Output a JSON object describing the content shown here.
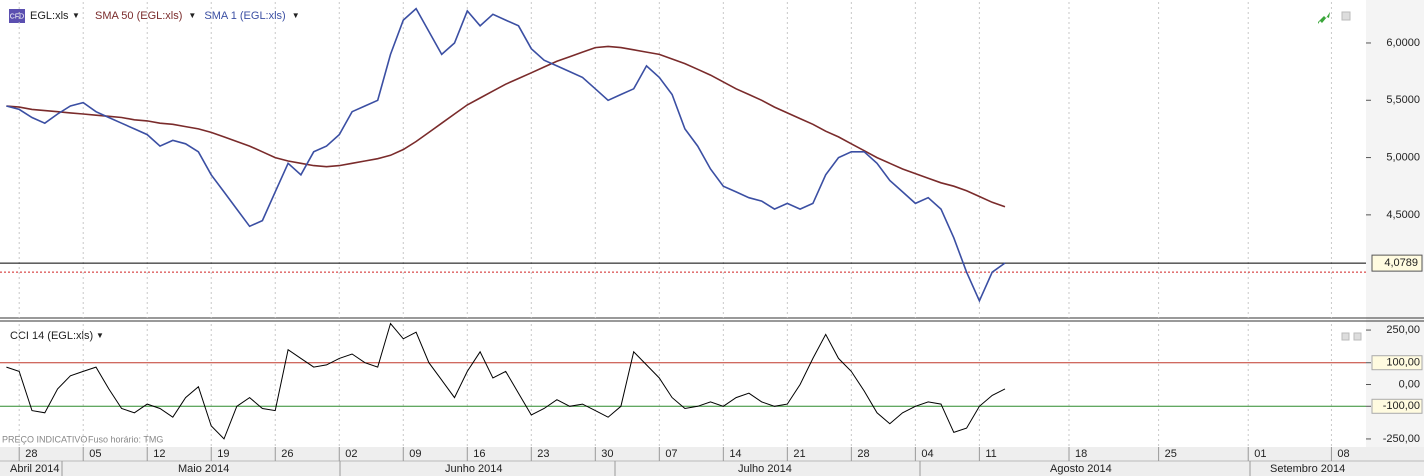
{
  "toolbar": {
    "badge": "CFD",
    "symbol": "EGL:xls",
    "footer": [
      "PREÇO INDICATIVO",
      "Fuso horário: TMG"
    ]
  },
  "months": [
    "Abril 2014",
    "Maio 2014",
    "Junho 2014",
    "Julho 2014",
    "Agosto 2014",
    "Setembro 2014"
  ],
  "chart_data": [
    {
      "type": "line",
      "x": [
        1,
        2,
        3,
        4,
        5,
        6,
        7,
        8,
        9,
        10,
        11,
        12,
        13,
        14,
        15,
        16,
        17,
        18,
        19,
        20,
        21,
        22,
        23,
        24,
        25,
        26,
        27,
        28,
        29,
        30,
        31,
        32,
        33,
        34,
        35,
        36,
        37,
        38,
        39,
        40,
        41,
        42,
        43,
        44,
        45,
        46,
        47,
        48,
        49,
        50,
        51,
        52,
        53,
        54,
        55,
        56,
        57,
        58,
        59,
        60,
        61,
        62,
        63,
        64,
        65,
        66,
        67,
        68,
        69,
        70,
        71,
        72,
        73,
        74,
        75,
        76,
        77,
        78,
        79
      ],
      "xlim": [
        0.5,
        107.2
      ],
      "xticks": [
        {
          "value": 2,
          "label": "28"
        },
        {
          "value": 7,
          "label": "05"
        },
        {
          "value": 12,
          "label": "12"
        },
        {
          "value": 17,
          "label": "19"
        },
        {
          "value": 22,
          "label": "26"
        },
        {
          "value": 27,
          "label": "02"
        },
        {
          "value": 32,
          "label": "09"
        },
        {
          "value": 37,
          "label": "16"
        },
        {
          "value": 42,
          "label": "23"
        },
        {
          "value": 47,
          "label": "30"
        },
        {
          "value": 52,
          "label": "07"
        },
        {
          "value": 57,
          "label": "14"
        },
        {
          "value": 62,
          "label": "21"
        },
        {
          "value": 67,
          "label": "28"
        },
        {
          "value": 72,
          "label": "04"
        },
        {
          "value": 77,
          "label": "11"
        },
        {
          "value": 84,
          "label": "18"
        },
        {
          "value": 91,
          "label": "25"
        },
        {
          "value": 98,
          "label": "01"
        },
        {
          "value": 104.5,
          "label": "08"
        }
      ],
      "ylim": [
        3.6,
        6.375
      ],
      "yticks": [
        {
          "value": 4.5,
          "label": "4,5000"
        },
        {
          "value": 5,
          "label": "5,0000"
        },
        {
          "value": 5.5,
          "label": "5,5000"
        },
        {
          "value": 6,
          "label": "6,0000"
        }
      ],
      "last_price": {
        "value": 4.0789,
        "label": "4,0789"
      },
      "alert_level": 4.0,
      "series": [
        {
          "name": "SMA 50 (EGL:xls)",
          "color": "#7a2b2b",
          "values": [
            5.45,
            5.44,
            5.42,
            5.41,
            5.4,
            5.39,
            5.38,
            5.37,
            5.36,
            5.35,
            5.33,
            5.32,
            5.3,
            5.29,
            5.27,
            5.25,
            5.22,
            5.18,
            5.14,
            5.1,
            5.05,
            5.0,
            4.97,
            4.95,
            4.93,
            4.92,
            4.93,
            4.95,
            4.97,
            4.99,
            5.02,
            5.07,
            5.14,
            5.22,
            5.3,
            5.38,
            5.46,
            5.52,
            5.58,
            5.64,
            5.69,
            5.74,
            5.79,
            5.84,
            5.88,
            5.92,
            5.96,
            5.97,
            5.96,
            5.94,
            5.92,
            5.9,
            5.86,
            5.82,
            5.77,
            5.72,
            5.66,
            5.6,
            5.55,
            5.5,
            5.44,
            5.39,
            5.34,
            5.29,
            5.23,
            5.18,
            5.12,
            5.06,
            5.0,
            4.95,
            4.9,
            4.86,
            4.82,
            4.78,
            4.75,
            4.71,
            4.66,
            4.61,
            4.57
          ]
        },
        {
          "name": "SMA 1 (EGL:xls)",
          "color": "#3b4fa3",
          "values": [
            5.45,
            5.42,
            5.35,
            5.3,
            5.38,
            5.45,
            5.48,
            5.4,
            5.35,
            5.3,
            5.25,
            5.2,
            5.1,
            5.15,
            5.12,
            5.05,
            4.85,
            4.7,
            4.55,
            4.4,
            4.45,
            4.7,
            4.95,
            4.85,
            5.05,
            5.1,
            5.2,
            5.4,
            5.45,
            5.5,
            5.9,
            6.2,
            6.3,
            6.1,
            5.9,
            6.0,
            6.28,
            6.15,
            6.25,
            6.2,
            6.15,
            5.95,
            5.85,
            5.8,
            5.75,
            5.7,
            5.6,
            5.5,
            5.55,
            5.6,
            5.8,
            5.7,
            5.55,
            5.25,
            5.1,
            4.9,
            4.75,
            4.7,
            4.65,
            4.62,
            4.55,
            4.6,
            4.55,
            4.6,
            4.85,
            5.0,
            5.05,
            5.05,
            4.95,
            4.8,
            4.7,
            4.6,
            4.65,
            4.55,
            4.3,
            4.0,
            3.75,
            4.0,
            4.08
          ]
        }
      ]
    },
    {
      "type": "line",
      "x": [
        1,
        2,
        3,
        4,
        5,
        6,
        7,
        8,
        9,
        10,
        11,
        12,
        13,
        14,
        15,
        16,
        17,
        18,
        19,
        20,
        21,
        22,
        23,
        24,
        25,
        26,
        27,
        28,
        29,
        30,
        31,
        32,
        33,
        34,
        35,
        36,
        37,
        38,
        39,
        40,
        41,
        42,
        43,
        44,
        45,
        46,
        47,
        48,
        49,
        50,
        51,
        52,
        53,
        54,
        55,
        56,
        57,
        58,
        59,
        60,
        61,
        62,
        63,
        64,
        65,
        66,
        67,
        68,
        69,
        70,
        71,
        72,
        73,
        74,
        75,
        76,
        77,
        78,
        79
      ],
      "ylim": [
        -287,
        287
      ],
      "yticks": [
        {
          "value": -250,
          "label": "-250,00"
        },
        {
          "value": -100,
          "label": "-100,00"
        },
        {
          "value": 0,
          "label": "0,00"
        },
        {
          "value": 100,
          "label": "100,00"
        },
        {
          "value": 250,
          "label": "250,00"
        }
      ],
      "levels": [
        {
          "value": 100,
          "color": "#c0392b"
        },
        {
          "value": -100,
          "color": "#2e8b2e"
        }
      ],
      "series": [
        {
          "name": "CCI 14 (EGL:xls)",
          "color": "#000000",
          "values": [
            80,
            60,
            -120,
            -130,
            -20,
            40,
            60,
            80,
            -20,
            -110,
            -130,
            -90,
            -110,
            -150,
            -60,
            -10,
            -190,
            -250,
            -100,
            -60,
            -110,
            -120,
            160,
            120,
            80,
            90,
            120,
            140,
            100,
            80,
            280,
            210,
            240,
            100,
            20,
            -60,
            60,
            150,
            30,
            60,
            -40,
            -140,
            -110,
            -70,
            -100,
            -90,
            -120,
            -150,
            -100,
            150,
            90,
            30,
            -60,
            -110,
            -100,
            -80,
            -100,
            -60,
            -40,
            -80,
            -100,
            -90,
            0,
            120,
            230,
            120,
            60,
            -30,
            -130,
            -180,
            -130,
            -100,
            -80,
            -90,
            -220,
            -200,
            -100,
            -50,
            -20
          ]
        }
      ]
    }
  ]
}
